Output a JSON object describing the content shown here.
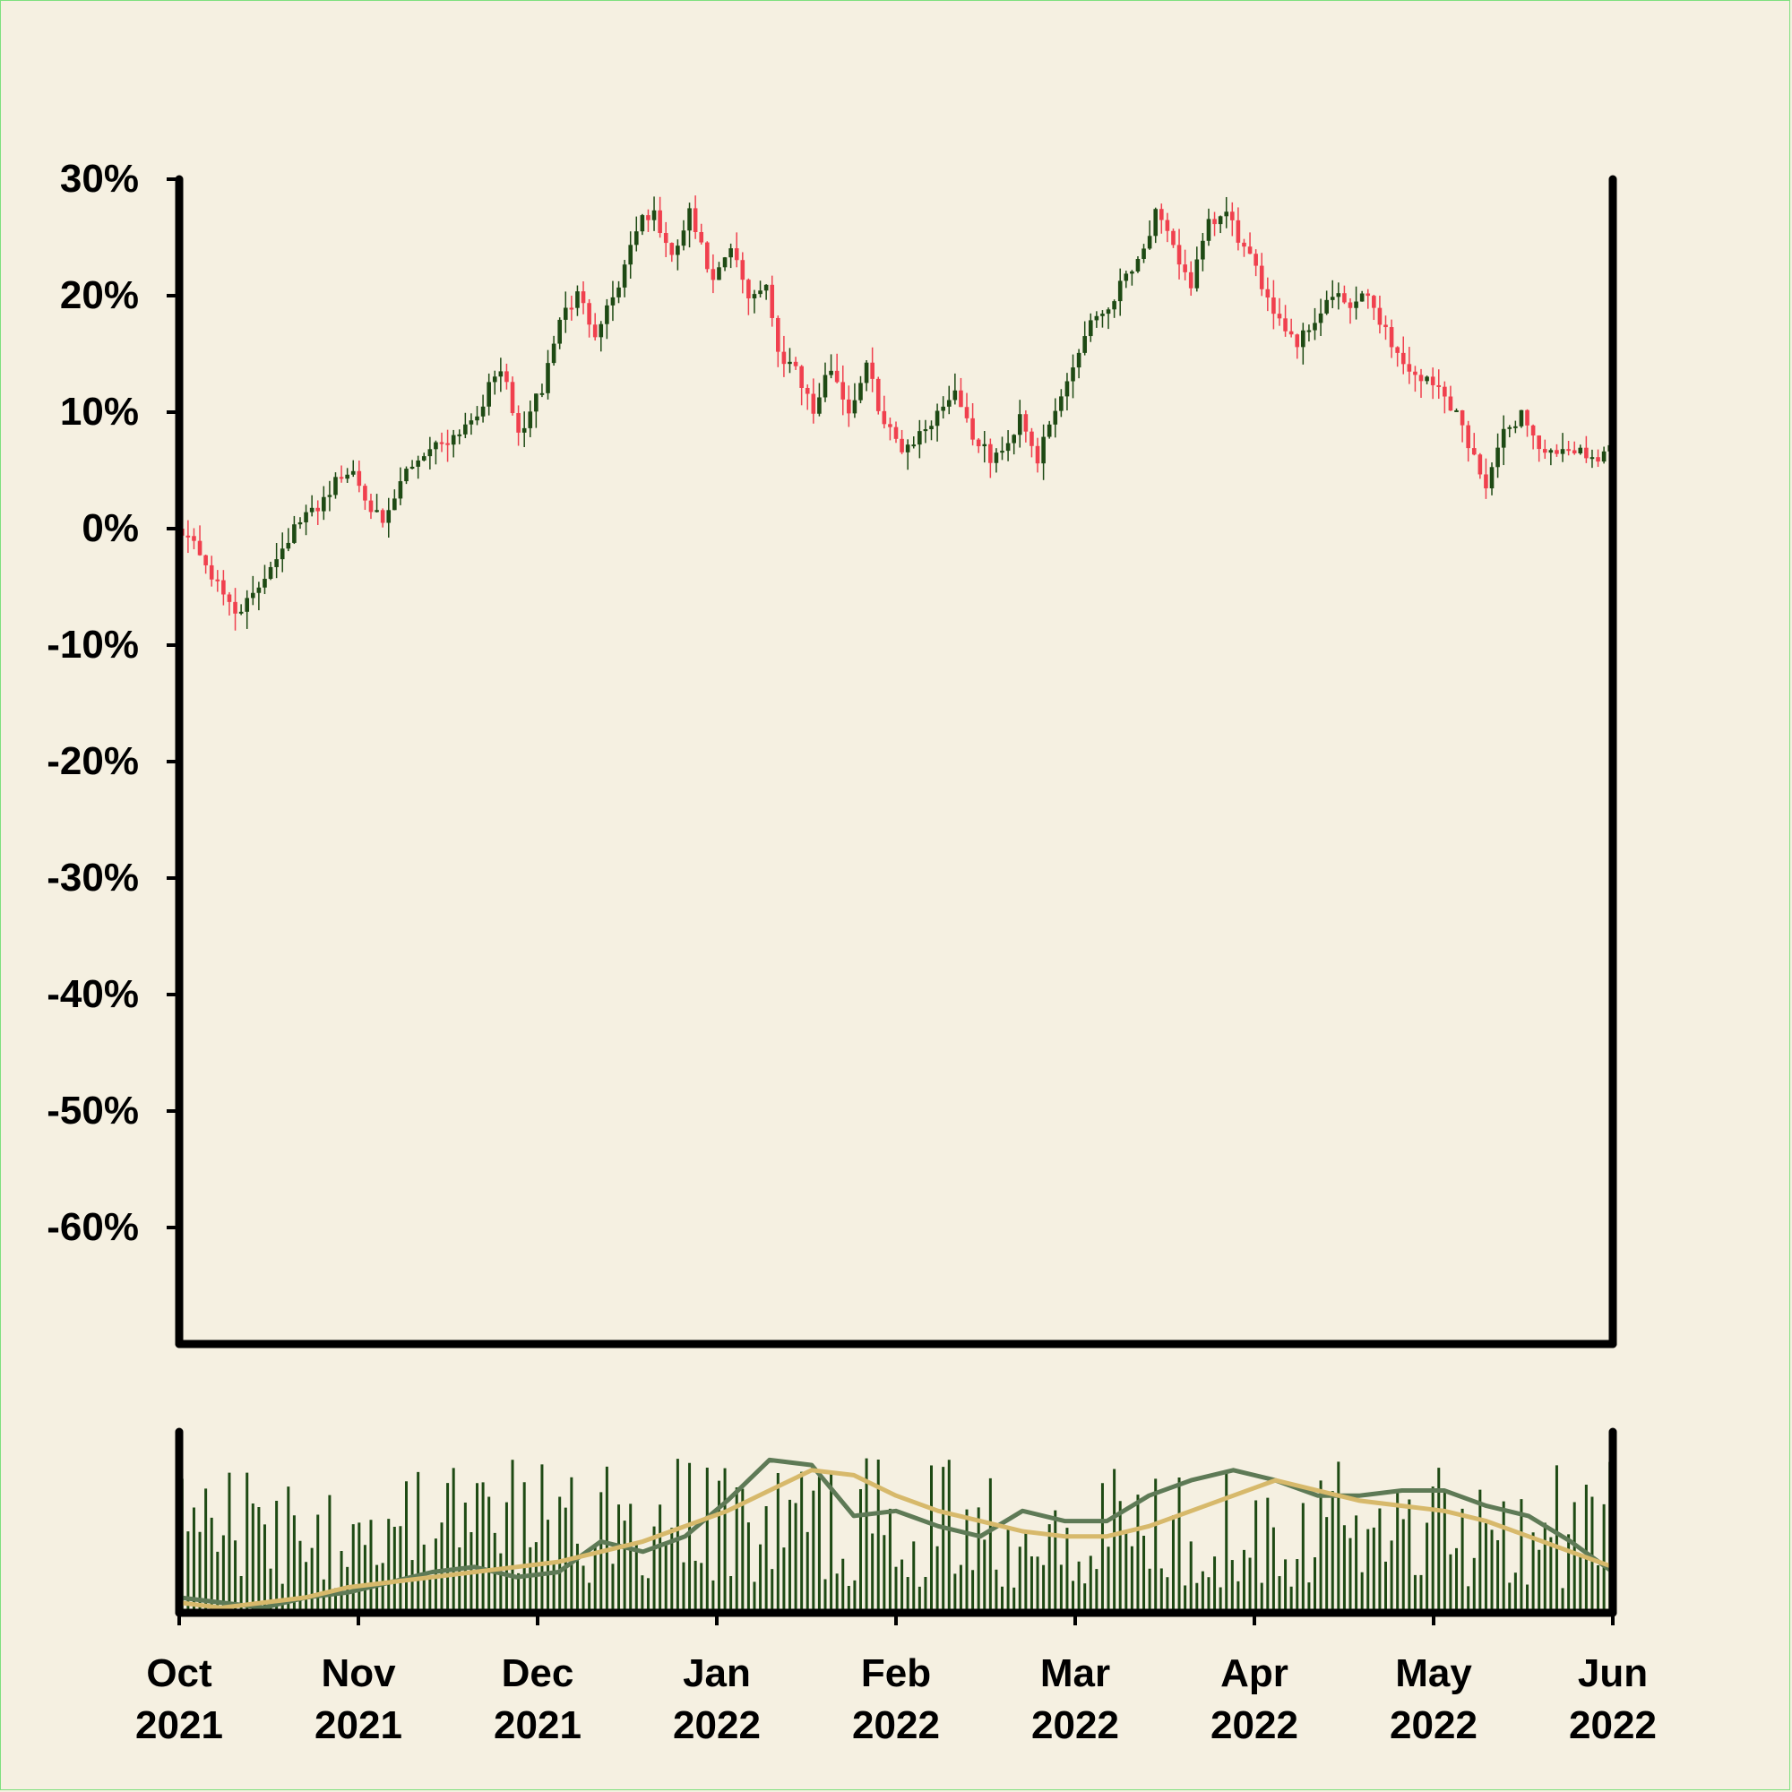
{
  "colors": {
    "background": "#f5f0e1",
    "up_candle": "#1e4a14",
    "down_candle": "#f0404e",
    "volume_bar": "#1e4a14",
    "ma_fast": "#5e7a56",
    "ma_slow": "#d7b96b",
    "axis": "#000000"
  },
  "chart_data": {
    "type": "candlestick",
    "title": "",
    "price_axis": {
      "ylim": [
        -70,
        30
      ],
      "tick_labels": [
        "30%",
        "20%",
        "10%",
        "0%",
        "-10%",
        "-20%",
        "-30%",
        "-40%",
        "-50%",
        "-60%"
      ]
    },
    "x_axis": {
      "range": [
        "2021-10-01",
        "2022-06-01"
      ],
      "tick_labels": [
        {
          "month": "Oct",
          "year": "2021"
        },
        {
          "month": "Nov",
          "year": "2021"
        },
        {
          "month": "Dec",
          "year": "2021"
        },
        {
          "month": "Jan",
          "year": "2022"
        },
        {
          "month": "Feb",
          "year": "2022"
        },
        {
          "month": "Mar",
          "year": "2022"
        },
        {
          "month": "Apr",
          "year": "2022"
        },
        {
          "month": "May",
          "year": "2022"
        },
        {
          "month": "Jun",
          "year": "2022"
        }
      ]
    },
    "close_path": [
      [
        "2021-10-01",
        0
      ],
      [
        "2021-10-04",
        -2
      ],
      [
        "2021-10-07",
        -5
      ],
      [
        "2021-10-10",
        -7
      ],
      [
        "2021-10-13",
        -6
      ],
      [
        "2021-10-16",
        -3
      ],
      [
        "2021-10-20",
        0
      ],
      [
        "2021-10-24",
        2
      ],
      [
        "2021-10-27",
        4
      ],
      [
        "2021-10-30",
        5
      ],
      [
        "2021-11-01",
        3
      ],
      [
        "2021-11-04",
        0
      ],
      [
        "2021-11-08",
        5
      ],
      [
        "2021-11-12",
        7
      ],
      [
        "2021-11-16",
        8
      ],
      [
        "2021-11-20",
        10
      ],
      [
        "2021-11-24",
        14
      ],
      [
        "2021-11-27",
        8
      ],
      [
        "2021-12-01",
        12
      ],
      [
        "2021-12-04",
        18
      ],
      [
        "2021-12-07",
        20
      ],
      [
        "2021-12-10",
        17
      ],
      [
        "2021-12-14",
        21
      ],
      [
        "2021-12-17",
        26
      ],
      [
        "2021-12-20",
        27
      ],
      [
        "2021-12-23",
        23
      ],
      [
        "2021-12-26",
        27
      ],
      [
        "2021-12-30",
        21
      ],
      [
        "2022-01-02",
        24
      ],
      [
        "2022-01-05",
        20
      ],
      [
        "2022-01-08",
        21
      ],
      [
        "2022-01-10",
        15
      ],
      [
        "2022-01-13",
        14
      ],
      [
        "2022-01-16",
        10
      ],
      [
        "2022-01-19",
        14
      ],
      [
        "2022-01-22",
        10
      ],
      [
        "2022-01-25",
        14
      ],
      [
        "2022-01-28",
        9
      ],
      [
        "2022-01-31",
        7
      ],
      [
        "2022-02-03",
        8
      ],
      [
        "2022-02-06",
        10
      ],
      [
        "2022-02-09",
        12
      ],
      [
        "2022-02-12",
        8
      ],
      [
        "2022-02-15",
        6
      ],
      [
        "2022-02-18",
        7
      ],
      [
        "2022-02-20",
        10
      ],
      [
        "2022-02-23",
        6
      ],
      [
        "2022-02-26",
        10
      ],
      [
        "2022-03-01",
        14
      ],
      [
        "2022-03-04",
        18
      ],
      [
        "2022-03-07",
        19
      ],
      [
        "2022-03-10",
        22
      ],
      [
        "2022-03-13",
        24
      ],
      [
        "2022-03-15",
        27
      ],
      [
        "2022-03-18",
        24
      ],
      [
        "2022-03-21",
        21
      ],
      [
        "2022-03-24",
        26
      ],
      [
        "2022-03-27",
        27
      ],
      [
        "2022-03-30",
        24
      ],
      [
        "2022-04-02",
        21
      ],
      [
        "2022-04-05",
        18
      ],
      [
        "2022-04-08",
        16
      ],
      [
        "2022-04-11",
        18
      ],
      [
        "2022-04-14",
        20
      ],
      [
        "2022-04-17",
        19
      ],
      [
        "2022-04-20",
        20
      ],
      [
        "2022-04-23",
        17
      ],
      [
        "2022-04-26",
        14
      ],
      [
        "2022-04-29",
        13
      ],
      [
        "2022-05-02",
        12
      ],
      [
        "2022-05-05",
        10
      ],
      [
        "2022-05-08",
        6
      ],
      [
        "2022-05-10",
        4
      ],
      [
        "2022-05-13",
        8
      ],
      [
        "2022-05-16",
        10
      ],
      [
        "2022-05-19",
        7
      ],
      [
        "2022-05-22",
        6
      ],
      [
        "2022-05-25",
        7
      ],
      [
        "2022-05-28",
        6
      ],
      [
        "2022-05-31",
        7
      ]
    ],
    "volume_panel": {
      "series": [
        {
          "values": [
            0.3,
            0.2,
            0.1,
            0.3,
            0.4,
            0.6,
            0.8,
            0.9,
            0.7,
            0.8,
            1.4,
            1.2,
            1.5,
            2.2,
            3.0,
            2.9,
            1.9,
            2.0,
            1.7,
            1.5,
            2.0,
            1.8,
            1.8,
            2.3,
            2.6,
            2.8,
            2.6,
            2.3,
            2.3,
            2.4,
            2.4,
            2.1,
            1.9,
            1.4,
            0.8
          ]
        },
        {
          "values": [
            0.2,
            0.1,
            0.2,
            0.3,
            0.5,
            0.6,
            0.7,
            0.8,
            0.9,
            1.0,
            1.2,
            1.4,
            1.7,
            2.0,
            2.4,
            2.8,
            2.7,
            2.3,
            2.0,
            1.8,
            1.6,
            1.5,
            1.5,
            1.7,
            2.0,
            2.3,
            2.6,
            2.4,
            2.2,
            2.1,
            2.0,
            1.8,
            1.5,
            1.2,
            0.9
          ]
        }
      ]
    }
  }
}
